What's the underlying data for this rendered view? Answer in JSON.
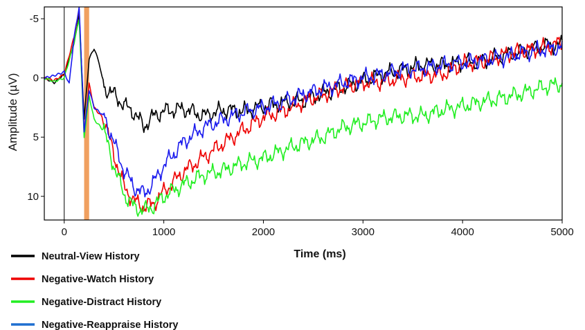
{
  "chart_data": {
    "type": "line",
    "xlabel": "Time (ms)",
    "ylabel": "Amplitude (µV)",
    "xlim": [
      -200,
      5000
    ],
    "ylim": [
      12,
      -6
    ],
    "y_inverted": true,
    "x_ticks": [
      0,
      1000,
      2000,
      3000,
      4000,
      5000
    ],
    "x_tick_labels": [
      "0",
      "1000",
      "2000",
      "3000",
      "4000",
      "5000"
    ],
    "y_ticks": [
      -5,
      0,
      5,
      10
    ],
    "y_tick_labels": [
      "-5",
      "0",
      "5",
      "10"
    ],
    "grid": false,
    "legend_position": "bottom-left",
    "reference_line_x": 0,
    "highlight_band": {
      "x_start": 200,
      "x_end": 250,
      "color": "#f0a060"
    },
    "series": [
      {
        "name": "Neutral-View History",
        "color": "#000000",
        "x": [
          -200,
          -100,
          0,
          100,
          150,
          200,
          250,
          300,
          350,
          400,
          500,
          600,
          700,
          800,
          900,
          1000,
          1200,
          1400,
          1600,
          1800,
          2000,
          2200,
          2400,
          2600,
          2800,
          3000,
          3200,
          3400,
          3600,
          3800,
          4000,
          4200,
          4400,
          4600,
          4800,
          5000
        ],
        "values": [
          0,
          0.4,
          -0.3,
          -3,
          -5.3,
          3.5,
          -1.6,
          -2.5,
          -1.3,
          0.8,
          1.4,
          2.3,
          2.9,
          4.1,
          3.2,
          2.8,
          2.6,
          3.2,
          2.7,
          2.8,
          2.4,
          2.1,
          1.9,
          1.3,
          0.8,
          0.2,
          -0.3,
          -0.7,
          -1.1,
          -1.1,
          -1.3,
          -1.4,
          -1.9,
          -2.2,
          -2.7,
          -2.8
        ]
      },
      {
        "name": "Negative-Watch History",
        "color": "#ee0000",
        "x": [
          -200,
          -100,
          0,
          100,
          150,
          200,
          250,
          300,
          400,
          500,
          600,
          700,
          800,
          900,
          1000,
          1200,
          1400,
          1600,
          1800,
          2000,
          2200,
          2400,
          2600,
          2800,
          3000,
          3200,
          3400,
          3600,
          3800,
          4000,
          4200,
          4400,
          4600,
          4800,
          5000
        ],
        "values": [
          0,
          0.2,
          -0.3,
          -3.5,
          -5.8,
          4.8,
          0.5,
          2.5,
          3.5,
          6.5,
          9.2,
          10.4,
          10.9,
          10.6,
          9.6,
          7.9,
          6.7,
          5.5,
          4.4,
          3.3,
          2.8,
          2.0,
          1.4,
          0.8,
          0.4,
          0.3,
          0,
          -0.2,
          -0.3,
          -1.2,
          -1.4,
          -1.9,
          -2.3,
          -2.5,
          -3.0
        ]
      },
      {
        "name": "Negative-Distract History",
        "color": "#22ee22",
        "x": [
          -200,
          -100,
          0,
          100,
          150,
          200,
          250,
          300,
          400,
          500,
          600,
          700,
          800,
          900,
          1000,
          1200,
          1400,
          1600,
          1800,
          2000,
          2200,
          2400,
          2600,
          2800,
          3000,
          3200,
          3400,
          3600,
          3800,
          4000,
          4200,
          4400,
          4600,
          4800,
          5000
        ],
        "values": [
          0,
          0.3,
          0,
          -3,
          -5,
          5,
          1.5,
          3.5,
          4.5,
          7.5,
          9.8,
          10.9,
          11.2,
          10.8,
          10,
          9,
          8.2,
          7.8,
          7.2,
          6.8,
          6.1,
          5.5,
          5.0,
          4.2,
          3.8,
          3.4,
          3.2,
          3.2,
          2.7,
          2.4,
          2.0,
          1.7,
          1.3,
          0.8,
          0.5
        ]
      },
      {
        "name": "Negative-Reappraise History",
        "color": "#1a1aee",
        "x": [
          -200,
          -100,
          0,
          50,
          100,
          150,
          200,
          250,
          300,
          400,
          500,
          600,
          700,
          800,
          900,
          1000,
          1200,
          1400,
          1600,
          1800,
          2000,
          2200,
          2400,
          2600,
          2800,
          3000,
          3200,
          3400,
          3600,
          3800,
          4000,
          4200,
          4400,
          4600,
          4800,
          5000
        ],
        "values": [
          0,
          -0.2,
          -0.5,
          0.5,
          -3.5,
          -6,
          4.5,
          1,
          2.5,
          3.2,
          5.5,
          7.8,
          9.2,
          9.8,
          8.8,
          7.4,
          5.4,
          4.2,
          3.5,
          2.9,
          2.5,
          2.0,
          1.4,
          0.9,
          0.4,
          0.0,
          -0.3,
          -0.7,
          -0.8,
          -1.1,
          -1.3,
          -1.5,
          -1.7,
          -2.1,
          -2.4,
          -2.6
        ]
      }
    ]
  }
}
